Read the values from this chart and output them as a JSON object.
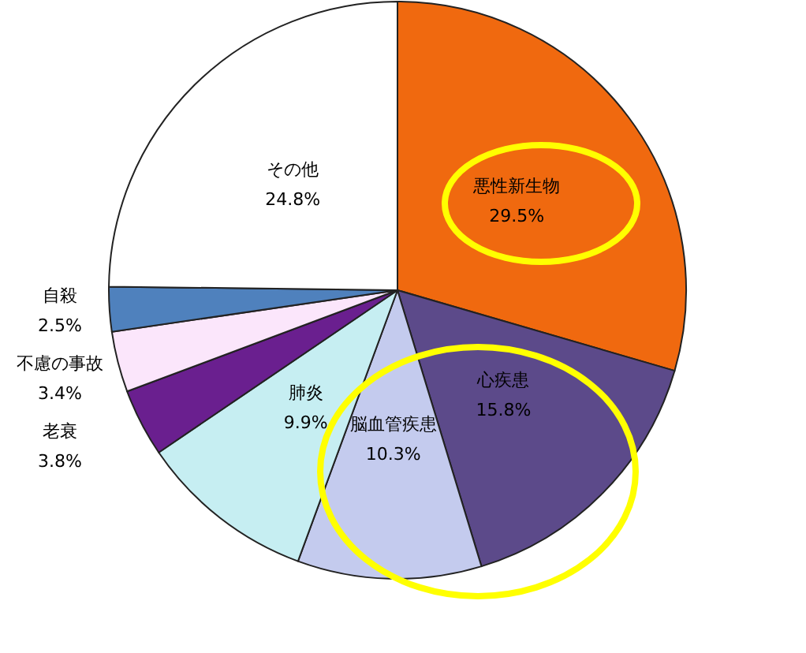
{
  "chart_data": {
    "type": "pie",
    "categories": [
      "悪性新生物",
      "心疾患",
      "脳血管疾患",
      "肺炎",
      "老衰",
      "不慮の事故",
      "自殺",
      "その他"
    ],
    "values": [
      29.5,
      15.8,
      10.3,
      9.9,
      3.8,
      3.4,
      2.5,
      24.8
    ],
    "value_labels": [
      "29.5%",
      "15.8%",
      "10.3%",
      "9.9%",
      "3.8%",
      "3.4%",
      "2.5%",
      "24.8%"
    ],
    "colors": [
      "#f0690f",
      "#5c4a8a",
      "#c4cbee",
      "#c6eef2",
      "#6a1f8f",
      "#fbe6fb",
      "#4f81bd",
      "#ffffff"
    ],
    "legend": false
  }
}
